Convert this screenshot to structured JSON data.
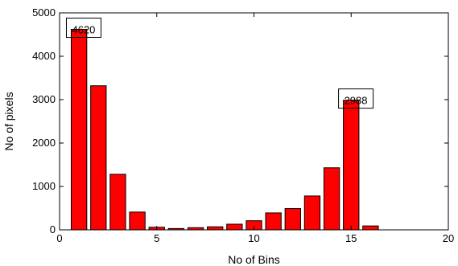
{
  "chart_data": {
    "type": "bar",
    "xlabel": "No of Bins",
    "ylabel": "No of pixels",
    "xlim": [
      0,
      20
    ],
    "ylim": [
      0,
      5000
    ],
    "xticks": [
      "0",
      "5",
      "10",
      "15",
      "20"
    ],
    "yticks": [
      "0",
      "1000",
      "2000",
      "3000",
      "4000",
      "5000"
    ],
    "grid": false,
    "x": [
      1,
      2,
      3,
      4,
      5,
      6,
      7,
      8,
      9,
      10,
      11,
      12,
      13,
      14,
      15,
      16
    ],
    "values": [
      4620,
      3320,
      1280,
      410,
      60,
      30,
      50,
      70,
      130,
      210,
      390,
      490,
      780,
      1430,
      2988,
      90
    ],
    "bar_width": 0.8,
    "bar_color": "#ff0000",
    "annotations": [
      {
        "x": 1,
        "y": 4620,
        "text": "4620"
      },
      {
        "x": 15,
        "y": 2988,
        "text": "2988"
      }
    ]
  }
}
